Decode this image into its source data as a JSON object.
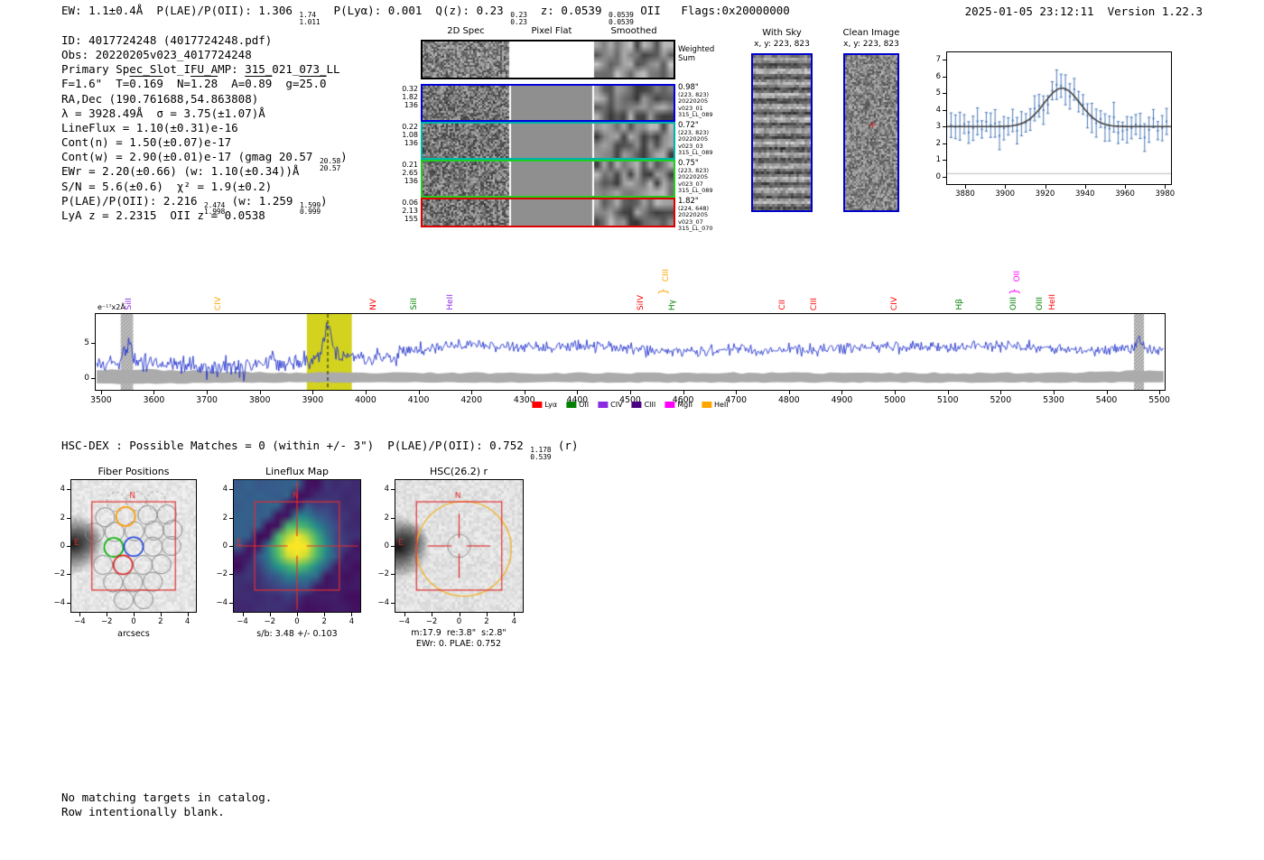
{
  "meta": {
    "stamp": "2025-01-05 23:12:11  Version 1.22.3"
  },
  "top_line": [
    {
      "t": "EW: 1.1±0.4Å  P(LAE)/P(OII): 1.306 "
    },
    {
      "hi": "1.74",
      "lo": "1.011"
    },
    {
      "t": "  P(Lyα): 0.001  Q(z): 0.23 "
    },
    {
      "hi": "0.23",
      "lo": "0.23"
    },
    {
      "t": "  z: 0.0539 "
    },
    {
      "hi": "0.0539",
      "lo": "0.0539"
    },
    {
      "t": " OII   Flags:0x20000000"
    }
  ],
  "info_lines": [
    [
      {
        "t": "ID: 4017724248 (4017724248.pdf)"
      }
    ],
    [
      {
        "t": "Obs: 20220205v023_4017724248"
      }
    ],
    [
      {
        "t": "Primary Spec_Slot_IFU_AMP: 315_021_073_LL"
      }
    ],
    [
      {
        "t": "F=1.6\"  T="
      },
      {
        "t": "0.169",
        "ov": true
      },
      {
        "t": "  N="
      },
      {
        "t": "1.28",
        "ov": true
      },
      {
        "t": "  A="
      },
      {
        "t": "0.89",
        "ov": true
      },
      {
        "t": "  g="
      },
      {
        "t": "25.0",
        "ov": true
      }
    ],
    [
      {
        "t": "RA,Dec (190.761688,54.863808)"
      }
    ],
    [
      {
        "t": "λ = 3928.49Å  σ = 3.75(±1.07)Å"
      }
    ],
    [
      {
        "t": "LineFlux = 1.10(±0.31)e-16"
      }
    ],
    [
      {
        "t": "Cont(n) = 1.50(±0.07)e-17"
      }
    ],
    [
      {
        "t": "Cont(w) = 2.90(±0.01)e-17 (gmag 20.57 "
      },
      {
        "hi": "20.58",
        "lo": "20.57"
      },
      {
        "t": ")"
      }
    ],
    [
      {
        "t": "EWr = 2.20(±0.66) (w: 1.10(±0.34))Å"
      }
    ],
    [
      {
        "t": "S/N = 5.6(±0.6)  χ² = 1.9(±0.2)"
      }
    ],
    [
      {
        "t": "P(LAE)/P(OII): 2.216 "
      },
      {
        "hi": "2.474",
        "lo": "1.998"
      },
      {
        "t": " (w: 1.259 "
      },
      {
        "hi": "1.599",
        "lo": "0.999"
      },
      {
        "t": ")"
      }
    ],
    [
      {
        "t": "LyA z = 2.2315  OII z = 0.0538"
      }
    ]
  ],
  "hsc_dex_line": [
    {
      "t": "HSC-DEX : Possible Matches = 0 (within +/- 3\")  P(LAE)/P(OII): 0.752 "
    },
    {
      "hi": "1.178",
      "lo": "0.539"
    },
    {
      "t": " (r)"
    }
  ],
  "notes": [
    "No matching targets in catalog.",
    "Row intentionally blank."
  ],
  "cutouts2d": {
    "headers": [
      "2D Spec",
      "Pixel Flat",
      "Smoothed"
    ],
    "weighted": [
      "Weighted",
      "Sum"
    ],
    "rows": [
      {
        "color": "#0000dd",
        "left": [
          "0.32",
          "1.82",
          "136"
        ],
        "right": [
          "0.98\"",
          "(223, 823)",
          "20220205",
          "v023_01",
          "315_LL_089"
        ]
      },
      {
        "color": "#00b3ab",
        "left": [
          "0.22",
          "1.08",
          "136"
        ],
        "right": [
          "0.72\"",
          "(223, 823)",
          "20220205",
          "v023_03",
          "315_LL_089"
        ]
      },
      {
        "color": "#22cc22",
        "left": [
          "0.21",
          "2.65",
          "136"
        ],
        "right": [
          "0.75\"",
          "(223, 823)",
          "20220205",
          "v023_07",
          "315_LL_089"
        ]
      },
      {
        "color": "#dd0000",
        "left": [
          "0.06",
          "2.13",
          "155"
        ],
        "right": [
          "1.82\"",
          "(224, 648)",
          "20220205",
          "v023_07",
          "315_LL_070"
        ]
      }
    ]
  },
  "sky_panels": [
    {
      "title": "With Sky",
      "subtitle": "x, y: 223, 823",
      "border_color": "#0000cc"
    },
    {
      "title": "Clean Image",
      "subtitle": "x, y: 223, 823",
      "border_color": "#0000cc"
    }
  ],
  "chart_data": [
    {
      "id": "line_fit",
      "type": "line",
      "unit_label": "e⁻¹⁷x2Å",
      "xlim": [
        3871,
        3983
      ],
      "ylim": [
        -0.45,
        7.45
      ],
      "x_ticks": [
        3880,
        3900,
        3920,
        3940,
        3960,
        3980
      ],
      "y_ticks": [
        0,
        1,
        2,
        3,
        4,
        5,
        6,
        7
      ],
      "fit": {
        "center": 3928.49,
        "sigma": 3.75,
        "baseline": 3.0,
        "peak": 5.3
      },
      "errorbar_color": "#4878b8",
      "fit_color": "#3b3b3b"
    },
    {
      "id": "full_spectrum",
      "type": "line",
      "unit_label": "e⁻¹⁷x2Å",
      "xlim": [
        3490,
        5510
      ],
      "ylim": [
        -1.6,
        9.1
      ],
      "x_ticks": [
        3500,
        3600,
        3700,
        3800,
        3900,
        4000,
        4100,
        4200,
        4300,
        4400,
        4500,
        4600,
        4700,
        4800,
        4900,
        5000,
        5100,
        5200,
        5300,
        5400,
        5500
      ],
      "y_ticks": [
        0,
        5
      ],
      "line_color": "#2233cc",
      "error_band_color": "#ababab",
      "emission_center": 3928.49,
      "continuum_left": 2.0,
      "continuum_right": 4.3,
      "peak_flux": 7.5,
      "highlight_band": {
        "range": [
          3889,
          3974
        ],
        "color": "#d2d21f"
      },
      "masked_bands": [
        [
          3537,
          3561
        ],
        [
          5452,
          5471
        ]
      ],
      "line_markers": [
        {
          "label": "SiII",
          "wl": 3554,
          "color": "#8a2be2",
          "tier": 0
        },
        {
          "label": "CIV",
          "wl": 3723,
          "color": "#ffa500",
          "tier": 0
        },
        {
          "label": "NV",
          "wl": 4018,
          "color": "#ff0000",
          "tier": 0
        },
        {
          "label": "SiII",
          "wl": 4094,
          "color": "#008000",
          "tier": 0
        },
        {
          "label": "HeII",
          "wl": 4162,
          "color": "#8a2be2",
          "tier": 0
        },
        {
          "label": "SiIV",
          "wl": 4523,
          "color": "#ff0000",
          "tier": 0
        },
        {
          "label": "CIII",
          "wl": 4570,
          "color": "#ffa500",
          "tier": 1,
          "brace": true
        },
        {
          "label": "Hγ",
          "wl": 4582,
          "color": "#008000",
          "tier": 0
        },
        {
          "label": "CII",
          "wl": 4790,
          "color": "#ff0000",
          "tier": 0
        },
        {
          "label": "CIII",
          "wl": 4850,
          "color": "#ff0000",
          "tier": 0
        },
        {
          "label": "CIV",
          "wl": 5002,
          "color": "#ff0000",
          "tier": 0
        },
        {
          "label": "Hβ",
          "wl": 5125,
          "color": "#008000",
          "tier": 0
        },
        {
          "label": "OIII",
          "wl": 5226,
          "color": "#008000",
          "tier": 0
        },
        {
          "label": "OII",
          "wl": 5233,
          "color": "#ff00ff",
          "tier": 1,
          "brace": true
        },
        {
          "label": "OIII",
          "wl": 5277,
          "color": "#008000",
          "tier": 0
        },
        {
          "label": "HeII",
          "wl": 5301,
          "color": "#ff0000",
          "tier": 0
        }
      ],
      "legend": [
        {
          "label": "Lyα",
          "color": "#ff0000"
        },
        {
          "label": "OII",
          "color": "#008000"
        },
        {
          "label": "CIV",
          "color": "#8a2be2"
        },
        {
          "label": "CIII",
          "color": "#4b0082"
        },
        {
          "label": "MgII",
          "color": "#ff00ff"
        },
        {
          "label": "HeII",
          "color": "#ffa500"
        }
      ]
    },
    {
      "id": "fiber_positions",
      "type": "scatter",
      "title": "Fiber Positions",
      "xlabel": "arcsecs",
      "ticks": [
        -4,
        -2,
        0,
        2,
        4
      ],
      "compass": [
        "N",
        "E"
      ],
      "aperture_half": 3.15,
      "fiber_radius": 0.72,
      "fiber_colors": {
        "gray": "#8a8a8a",
        "dashed": "#a0a0a0",
        "orange": "#ff9900",
        "green": "#00b300",
        "blue": "#2244dd",
        "red": "#dd2222"
      },
      "fibers": [
        {
          "x": -1.3,
          "y": 3.15,
          "style": "dashed"
        },
        {
          "x": 0.2,
          "y": 3.2,
          "style": "dashed"
        },
        {
          "x": 1.7,
          "y": 3.2,
          "style": "dashed"
        },
        {
          "x": -2.15,
          "y": 2.05,
          "style": "gray"
        },
        {
          "x": 1.05,
          "y": 2.2,
          "style": "gray"
        },
        {
          "x": 2.5,
          "y": 2.25,
          "style": "gray"
        },
        {
          "x": -2.95,
          "y": 0.95,
          "style": "gray"
        },
        {
          "x": -1.45,
          "y": 1.0,
          "style": "gray"
        },
        {
          "x": 0.05,
          "y": 1.05,
          "style": "gray"
        },
        {
          "x": 1.55,
          "y": 1.1,
          "style": "gray"
        },
        {
          "x": 2.95,
          "y": 1.15,
          "style": "gray"
        },
        {
          "x": 1.45,
          "y": -0.05,
          "style": "gray"
        },
        {
          "x": 2.85,
          "y": 0.0,
          "style": "gray"
        },
        {
          "x": -2.3,
          "y": -1.35,
          "style": "gray"
        },
        {
          "x": 0.7,
          "y": -1.35,
          "style": "gray"
        },
        {
          "x": 2.1,
          "y": -1.3,
          "style": "gray"
        },
        {
          "x": -1.55,
          "y": -2.6,
          "style": "gray"
        },
        {
          "x": -0.05,
          "y": -2.6,
          "style": "gray"
        },
        {
          "x": 1.45,
          "y": -2.55,
          "style": "gray"
        },
        {
          "x": -0.75,
          "y": -3.85,
          "style": "gray"
        },
        {
          "x": 0.75,
          "y": -3.8,
          "style": "gray"
        },
        {
          "x": -0.6,
          "y": 2.1,
          "style": "orange"
        },
        {
          "x": -1.5,
          "y": -0.1,
          "style": "green"
        },
        {
          "x": 0.0,
          "y": -0.05,
          "style": "blue"
        },
        {
          "x": -0.8,
          "y": -1.35,
          "style": "red"
        }
      ]
    },
    {
      "id": "lineflux_map",
      "type": "heatmap",
      "title": "Lineflux Map",
      "caption": "s/b: 3.48 +/- 0.103",
      "peak_sn": 3.48,
      "ticks": [
        -4,
        -2,
        0,
        2,
        4
      ],
      "compass": [
        "N",
        "E"
      ],
      "aperture_half": 3.15
    },
    {
      "id": "hsc_r",
      "type": "image",
      "title": "HSC(26.2) r",
      "captions": [
        "m:17.9  re:3.8\"  s:2.8\"",
        "EWr: 0. PLAE: 0.752"
      ],
      "ticks": [
        -4,
        -2,
        0,
        2,
        4
      ],
      "compass": [
        "N",
        "E"
      ],
      "aperture_half": 3.15,
      "aperture_circle": {
        "x": 0.35,
        "y": -0.2,
        "r": 3.5,
        "color": "#f0b42e"
      }
    }
  ]
}
